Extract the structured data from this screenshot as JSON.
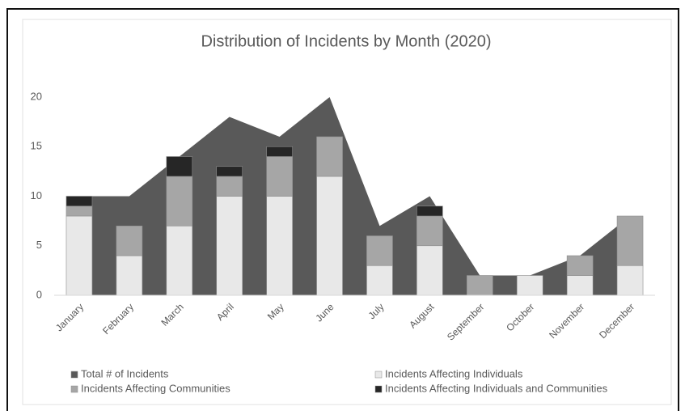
{
  "chart_data": {
    "type": "combo",
    "title": "Distribution of Incidents by Month (2020)",
    "categories": [
      "January",
      "February",
      "March",
      "April",
      "May",
      "June",
      "July",
      "August",
      "September",
      "October",
      "November",
      "December"
    ],
    "series": [
      {
        "name": "Total # of Incidents",
        "type": "area",
        "color": "#595959",
        "values": [
          10,
          10,
          14,
          18,
          16,
          20,
          7,
          10,
          2,
          2,
          4,
          8
        ]
      },
      {
        "name": "Incidents Affecting Individuals",
        "type": "bar",
        "color": "#e8e8e8",
        "values": [
          8,
          4,
          7,
          10,
          10,
          12,
          3,
          5,
          0,
          2,
          2,
          3
        ]
      },
      {
        "name": "Incidents Affecting Communities",
        "type": "bar",
        "color": "#a6a6a6",
        "values": [
          1,
          3,
          5,
          2,
          4,
          4,
          3,
          3,
          2,
          0,
          2,
          5
        ]
      },
      {
        "name": "Incidents Affecting Individuals and Communities",
        "type": "bar",
        "color": "#262626",
        "values": [
          1,
          0,
          2,
          1,
          1,
          0,
          0,
          1,
          0,
          0,
          0,
          0
        ]
      }
    ],
    "ylim": [
      0,
      20
    ],
    "yticks": [
      0,
      5,
      10,
      15,
      20
    ],
    "grid": false,
    "legend": "bottom"
  }
}
